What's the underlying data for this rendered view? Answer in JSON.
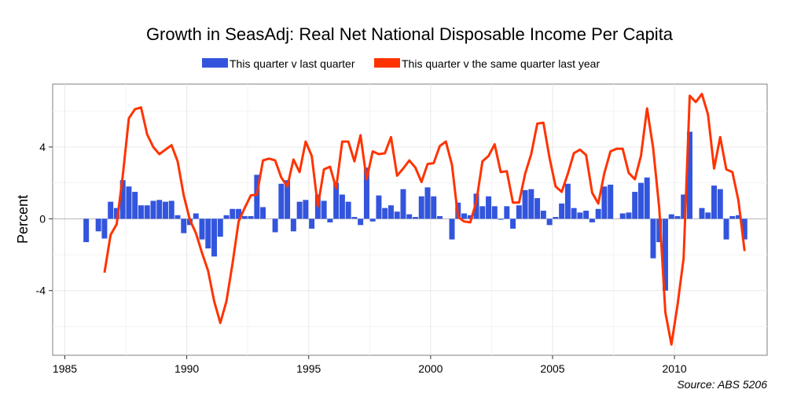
{
  "chart_data": {
    "type": "bar+line",
    "title": "Growth in SeasAdj: Real Net National Disposable Income Per Capita",
    "ylabel": "Percent",
    "xlabel": "",
    "source": "Source: ABS 5206",
    "xlim": [
      1984.5,
      2013.8
    ],
    "ylim": [
      -7.6,
      7.5
    ],
    "x_ticks": [
      1985,
      1990,
      1995,
      2000,
      2005,
      2010
    ],
    "x_tick_labels": [
      "1985",
      "1990",
      "1995",
      "2000",
      "2005",
      "2010"
    ],
    "y_ticks": [
      -4,
      0,
      4
    ],
    "y_tick_labels": [
      "-4",
      "0",
      "4"
    ],
    "grid": true,
    "legend": {
      "position": "top",
      "entries": [
        {
          "label": "This quarter v last quarter",
          "color": "#3355dd"
        },
        {
          "label": "This quarter v the same quarter last year",
          "color": "#ff3300"
        }
      ]
    },
    "series": [
      {
        "name": "This quarter v last quarter",
        "type": "bar",
        "color": "#3355dd",
        "x": [
          1985.875,
          1986.125,
          1986.375,
          1986.625,
          1986.875,
          1987.125,
          1987.375,
          1987.625,
          1987.875,
          1988.125,
          1988.375,
          1988.625,
          1988.875,
          1989.125,
          1989.375,
          1989.625,
          1989.875,
          1990.125,
          1990.375,
          1990.625,
          1990.875,
          1991.125,
          1991.375,
          1991.625,
          1991.875,
          1992.125,
          1992.375,
          1992.625,
          1992.875,
          1993.125,
          1993.375,
          1993.625,
          1993.875,
          1994.125,
          1994.375,
          1994.625,
          1994.875,
          1995.125,
          1995.375,
          1995.625,
          1995.875,
          1996.125,
          1996.375,
          1996.625,
          1996.875,
          1997.125,
          1997.375,
          1997.625,
          1997.875,
          1998.125,
          1998.375,
          1998.625,
          1998.875,
          1999.125,
          1999.375,
          1999.625,
          1999.875,
          2000.125,
          2000.375,
          2000.625,
          2000.875,
          2001.125,
          2001.375,
          2001.625,
          2001.875,
          2002.125,
          2002.375,
          2002.625,
          2002.875,
          2003.125,
          2003.375,
          2003.625,
          2003.875,
          2004.125,
          2004.375,
          2004.625,
          2004.875,
          2005.125,
          2005.375,
          2005.625,
          2005.875,
          2006.125,
          2006.375,
          2006.625,
          2006.875,
          2007.125,
          2007.375,
          2007.625,
          2007.875,
          2008.125,
          2008.375,
          2008.625,
          2008.875,
          2009.125,
          2009.375,
          2009.625,
          2009.875,
          2010.125,
          2010.375,
          2010.625,
          2010.875,
          2011.125,
          2011.375,
          2011.625,
          2011.875,
          2012.125,
          2012.375,
          2012.625,
          2012.875
        ],
        "values": [
          -1.3,
          0.0,
          -0.7,
          -1.1,
          0.95,
          0.6,
          2.15,
          1.8,
          1.5,
          0.75,
          0.75,
          1.0,
          1.05,
          0.95,
          1.0,
          0.2,
          -0.8,
          -0.35,
          0.3,
          -1.15,
          -1.65,
          -2.1,
          -1.0,
          0.2,
          0.55,
          0.55,
          0.15,
          0.15,
          2.45,
          0.65,
          0.0,
          -0.75,
          1.95,
          2.15,
          -0.7,
          0.95,
          1.05,
          -0.55,
          1.35,
          1.0,
          -0.2,
          2.0,
          1.35,
          0.95,
          0.1,
          -0.35,
          2.85,
          -0.15,
          1.3,
          0.6,
          0.75,
          0.4,
          1.65,
          0.25,
          0.1,
          1.25,
          1.75,
          1.25,
          0.15,
          0.0,
          -1.15,
          0.9,
          0.3,
          0.2,
          1.4,
          0.7,
          1.25,
          0.7,
          -0.05,
          0.7,
          -0.55,
          0.75,
          1.6,
          1.65,
          1.15,
          0.45,
          -0.35,
          0.1,
          0.85,
          1.95,
          0.6,
          0.35,
          0.45,
          -0.2,
          0.55,
          1.8,
          1.9,
          0.0,
          0.3,
          0.35,
          1.5,
          2.0,
          2.3,
          -2.2,
          -1.3,
          -4.0,
          0.25,
          0.15,
          1.35,
          4.85,
          0.0,
          0.6,
          0.35,
          1.85,
          1.65,
          -1.15,
          0.15,
          0.2,
          -1.15
        ]
      },
      {
        "name": "This quarter v the same quarter last year",
        "type": "line",
        "color": "#ff3300",
        "x": [
          1986.625,
          1986.875,
          1987.125,
          1987.375,
          1987.625,
          1987.875,
          1988.125,
          1988.375,
          1988.625,
          1988.875,
          1989.125,
          1989.375,
          1989.625,
          1989.875,
          1990.125,
          1990.375,
          1990.625,
          1990.875,
          1991.125,
          1991.375,
          1991.625,
          1991.875,
          1992.125,
          1992.375,
          1992.625,
          1992.875,
          1993.125,
          1993.375,
          1993.625,
          1993.875,
          1994.125,
          1994.375,
          1994.625,
          1994.875,
          1995.125,
          1995.375,
          1995.625,
          1995.875,
          1996.125,
          1996.375,
          1996.625,
          1996.875,
          1997.125,
          1997.375,
          1997.625,
          1997.875,
          1998.125,
          1998.375,
          1998.625,
          1998.875,
          1999.125,
          1999.375,
          1999.625,
          1999.875,
          2000.125,
          2000.375,
          2000.625,
          2000.875,
          2001.125,
          2001.375,
          2001.625,
          2001.875,
          2002.125,
          2002.375,
          2002.625,
          2002.875,
          2003.125,
          2003.375,
          2003.625,
          2003.875,
          2004.125,
          2004.375,
          2004.625,
          2004.875,
          2005.125,
          2005.375,
          2005.625,
          2005.875,
          2006.125,
          2006.375,
          2006.625,
          2006.875,
          2007.125,
          2007.375,
          2007.625,
          2007.875,
          2008.125,
          2008.375,
          2008.625,
          2008.875,
          2009.125,
          2009.375,
          2009.625,
          2009.875,
          2010.125,
          2010.375,
          2010.625,
          2010.875,
          2011.125,
          2011.375,
          2011.625,
          2011.875,
          2012.125,
          2012.375,
          2012.625,
          2012.875
        ],
        "values": [
          -3.0,
          -0.9,
          -0.3,
          2.4,
          5.6,
          6.1,
          6.2,
          4.7,
          4.0,
          3.6,
          3.85,
          4.1,
          3.2,
          1.3,
          -0.05,
          -0.8,
          -1.9,
          -2.9,
          -4.6,
          -5.8,
          -4.6,
          -2.5,
          -0.15,
          0.6,
          1.3,
          1.35,
          3.25,
          3.35,
          3.25,
          2.3,
          1.8,
          3.3,
          2.6,
          4.3,
          3.5,
          0.7,
          2.75,
          2.9,
          1.7,
          4.3,
          4.3,
          3.2,
          4.65,
          2.2,
          3.75,
          3.6,
          3.65,
          4.55,
          2.4,
          2.8,
          3.25,
          2.85,
          2.05,
          3.05,
          3.1,
          4.05,
          4.3,
          3.0,
          0.1,
          -0.15,
          -0.2,
          0.95,
          3.2,
          3.5,
          4.15,
          2.6,
          2.65,
          0.9,
          0.9,
          2.5,
          3.6,
          5.3,
          5.35,
          3.4,
          1.8,
          1.5,
          2.5,
          3.65,
          3.85,
          3.55,
          1.45,
          0.85,
          2.55,
          3.75,
          3.9,
          3.9,
          2.55,
          2.2,
          3.5,
          6.15,
          3.95,
          0.6,
          -5.2,
          -7.0,
          -4.8,
          -2.2,
          6.85,
          6.5,
          6.95,
          5.8,
          2.8,
          4.55,
          2.75,
          2.6,
          1.0,
          -1.8
        ]
      }
    ]
  }
}
